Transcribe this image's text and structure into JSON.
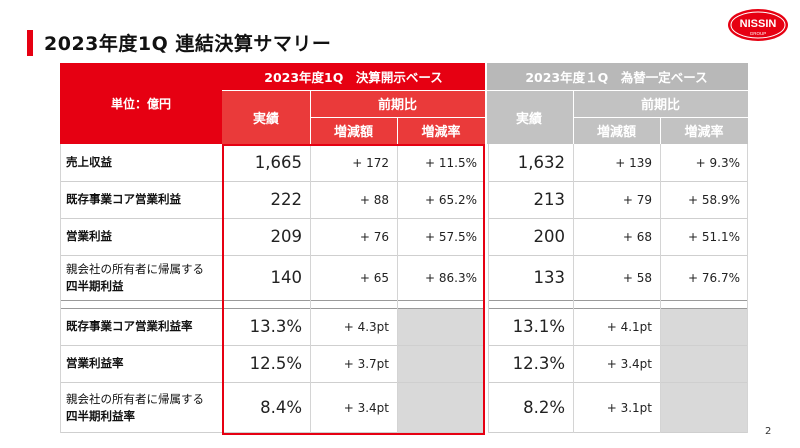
{
  "title": "2023年度1Q 連結決算サマリー",
  "logo": {
    "line1": "NISSIN",
    "line2": "GROUP"
  },
  "page_number": "2",
  "table": {
    "unit_label": "単位：億円",
    "group_reported": "2023年度1Q　決算開示ベース",
    "group_fx": "2023年度１Q　為替一定ベース",
    "col_actual": "実績",
    "col_yoy": "前期比",
    "col_change_amt": "増減額",
    "col_change_rate": "増減率",
    "rows": [
      {
        "label": "売上収益",
        "r_actual": "1,665",
        "r_amt": "+ 172",
        "r_rate": "+ 11.5%",
        "f_actual": "1,632",
        "f_amt": "+ 139",
        "f_rate": "+ 9.3%"
      },
      {
        "label": "既存事業コア営業利益",
        "r_actual": "222",
        "r_amt": "+ 88",
        "r_rate": "+ 65.2%",
        "f_actual": "213",
        "f_amt": "+ 79",
        "f_rate": "+ 58.9%"
      },
      {
        "label": "営業利益",
        "r_actual": "209",
        "r_amt": "+ 76",
        "r_rate": "+ 57.5%",
        "f_actual": "200",
        "f_amt": "+ 68",
        "f_rate": "+ 51.1%"
      },
      {
        "label_l1": "親会社の所有者に帰属する",
        "label_l2": "四半期利益",
        "r_actual": "140",
        "r_amt": "+ 65",
        "r_rate": "+ 86.3%",
        "f_actual": "133",
        "f_amt": "+ 58",
        "f_rate": "+ 76.7%"
      }
    ],
    "ratio_rows": [
      {
        "label": "既存事業コア営業利益率",
        "r_actual": "13.3%",
        "r_amt": "+ 4.3pt",
        "f_actual": "13.1%",
        "f_amt": "+ 4.1pt"
      },
      {
        "label": "営業利益率",
        "r_actual": "12.5%",
        "r_amt": "+ 3.7pt",
        "f_actual": "12.3%",
        "f_amt": "+ 3.4pt"
      },
      {
        "label_l1": "親会社の所有者に帰属する",
        "label_l2": "四半期利益率",
        "r_actual": "8.4%",
        "r_amt": "+ 3.4pt",
        "f_actual": "8.2%",
        "f_amt": "+ 3.1pt"
      }
    ]
  },
  "colors": {
    "brand_red": "#e60012",
    "header_gray": "#b8b8b8",
    "shade": "#d9d9d9"
  }
}
